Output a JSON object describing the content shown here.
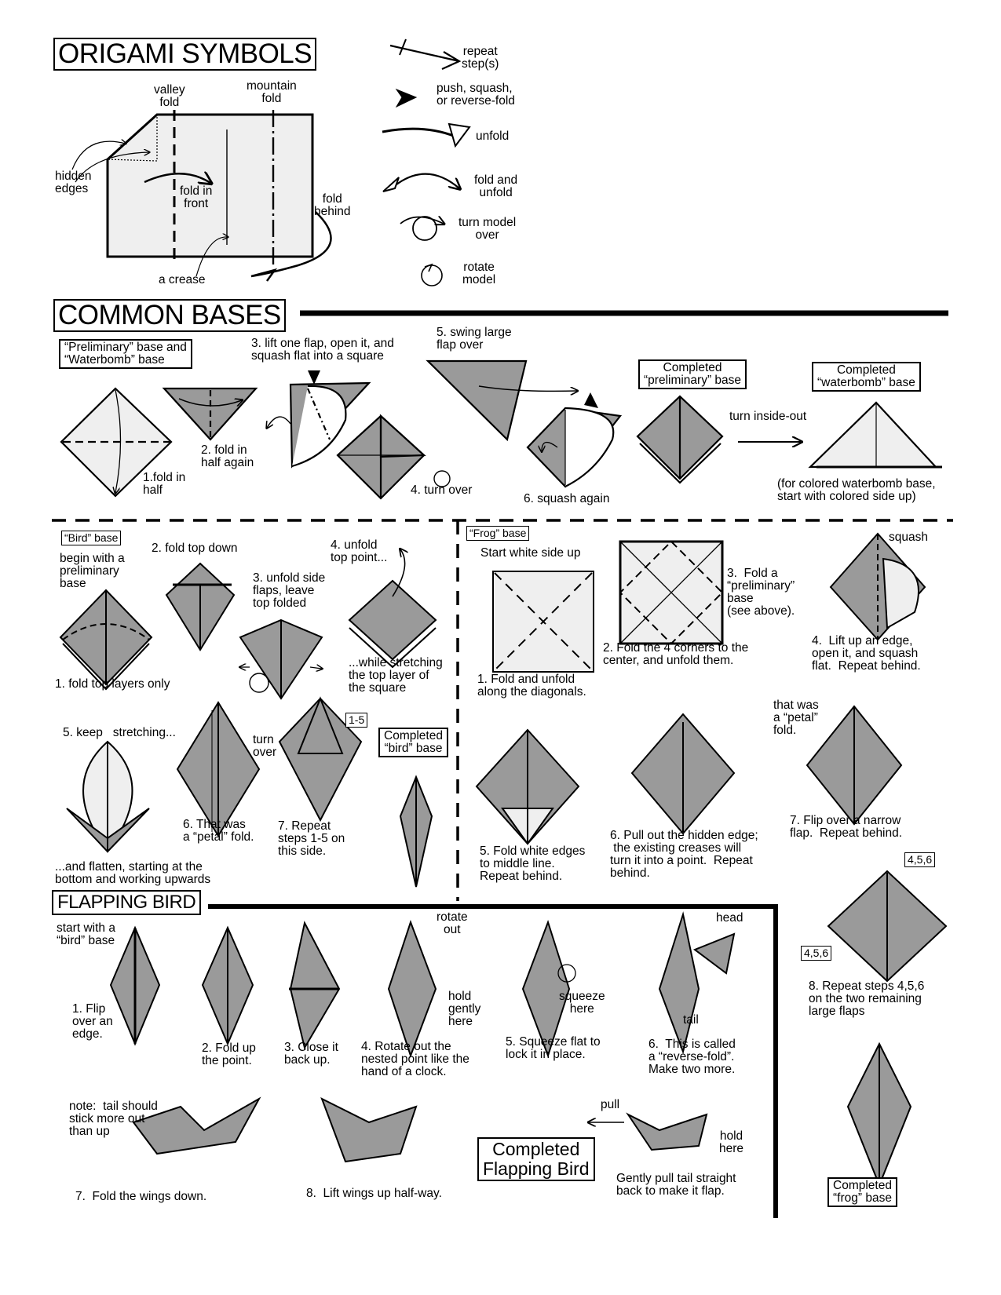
{
  "colors": {
    "paper_gray": "#9a9a9a",
    "light_paper": "#efefef",
    "ink": "#000000"
  },
  "symbols": {
    "title": "ORIGAMI SYMBOLS",
    "valley_fold": "valley\nfold",
    "mountain_fold": "mountain\nfold",
    "hidden_edges": "hidden\nedges",
    "fold_in_front": "fold in\nfront",
    "fold_behind": "fold\nbehind",
    "a_crease": "a crease",
    "repeat_steps": "repeat\nstep(s)",
    "push_squash": "push, squash,\nor reverse-fold",
    "unfold": "unfold",
    "fold_and_unfold": "fold and\nunfold",
    "turn_model_over": "turn model\nover",
    "rotate_model": "rotate\nmodel"
  },
  "bases": {
    "title": "COMMON BASES",
    "prelim_box": "“Preliminary” base and\n“Waterbomb” base",
    "step1": "1.fold in\nhalf",
    "step2": "2. fold in\nhalf again",
    "step3": "3. lift one flap, open it, and\nsquash flat into a square",
    "step4": "4. turn over",
    "step5": "5. swing large\nflap over",
    "step6": "6. squash again",
    "completed_prelim": "Completed\n“preliminary” base",
    "turn_inside_out": "turn inside-out",
    "completed_waterbomb": "Completed\n“waterbomb” base",
    "colored_note": "(for colored waterbomb base,\nstart with colored side up)"
  },
  "bird": {
    "tag": "“Bird” base",
    "begin": "begin with a\npreliminary\nbase",
    "s1": "1. fold top layers only",
    "s2": "2. fold top down",
    "s3": "3. unfold side\nflaps, leave\ntop folded",
    "s4": "4. unfold\ntop point...",
    "while": "...while stretching\nthe top layer of\nthe square",
    "s5": "5. keep   stretching...",
    "flatten": "...and flatten, starting at the\nbottom and working upwards",
    "s6": "6. That was\na “petal” fold.",
    "turn_over": "turn\nover",
    "s7": "7. Repeat\nsteps 1-5 on\nthis side.",
    "repeat_tag": "1-5",
    "completed": "Completed\n“bird” base"
  },
  "frog": {
    "tag": "“Frog” base",
    "start": "Start white side up",
    "s1": "1. Fold and unfold\nalong the diagonals.",
    "s2": "2. Fold the 4 corners to the\ncenter, and unfold them.",
    "s3": "3.  Fold a\n“preliminary”\nbase\n(see above).",
    "squash": "squash",
    "s4": "4.  Lift up an edge,\nopen it, and squash\nflat.  Repeat behind.",
    "s5": "5. Fold white edges\nto middle line.\nRepeat behind.",
    "s6": "6. Pull out the hidden edge;\n the existing creases will\nturn it into a point.  Repeat\nbehind.",
    "petal_note": "that was\na “petal”\nfold.",
    "s7": "7. Flip over a narrow\nflap.  Repeat behind.",
    "tag456": "4,5,6",
    "s8": "8. Repeat steps 4,5,6\non the two remaining\nlarge flaps",
    "completed": "Completed\n“frog” base"
  },
  "flapping": {
    "title": "FLAPPING BIRD",
    "start": "start with a\n“bird” base",
    "s1": "1. Flip\nover an\nedge.",
    "s2": "2. Fold up\nthe point.",
    "s3": "3. Close it\nback up.",
    "rotate_out": "rotate\nout",
    "hold_gently": "hold\ngently\nhere",
    "s4": "4. Rotate out the\nnested point like the\nhand of a clock.",
    "squeeze": "squeeze\nhere",
    "s5": "5. Squeeze flat to\nlock it in place.",
    "head": "head",
    "tail": "tail",
    "s6": "6.  This is called\na “reverse-fold”.\nMake two more.",
    "note": "note:  tail should\nstick more out\nthan up",
    "s7": "7.  Fold the wings down.",
    "s8": "8.  Lift wings up half-way.",
    "completed": "Completed\nFlapping Bird",
    "pull": "pull",
    "hold_here": "hold\nhere",
    "gently_pull": "Gently pull tail straight\nback to make it flap."
  }
}
